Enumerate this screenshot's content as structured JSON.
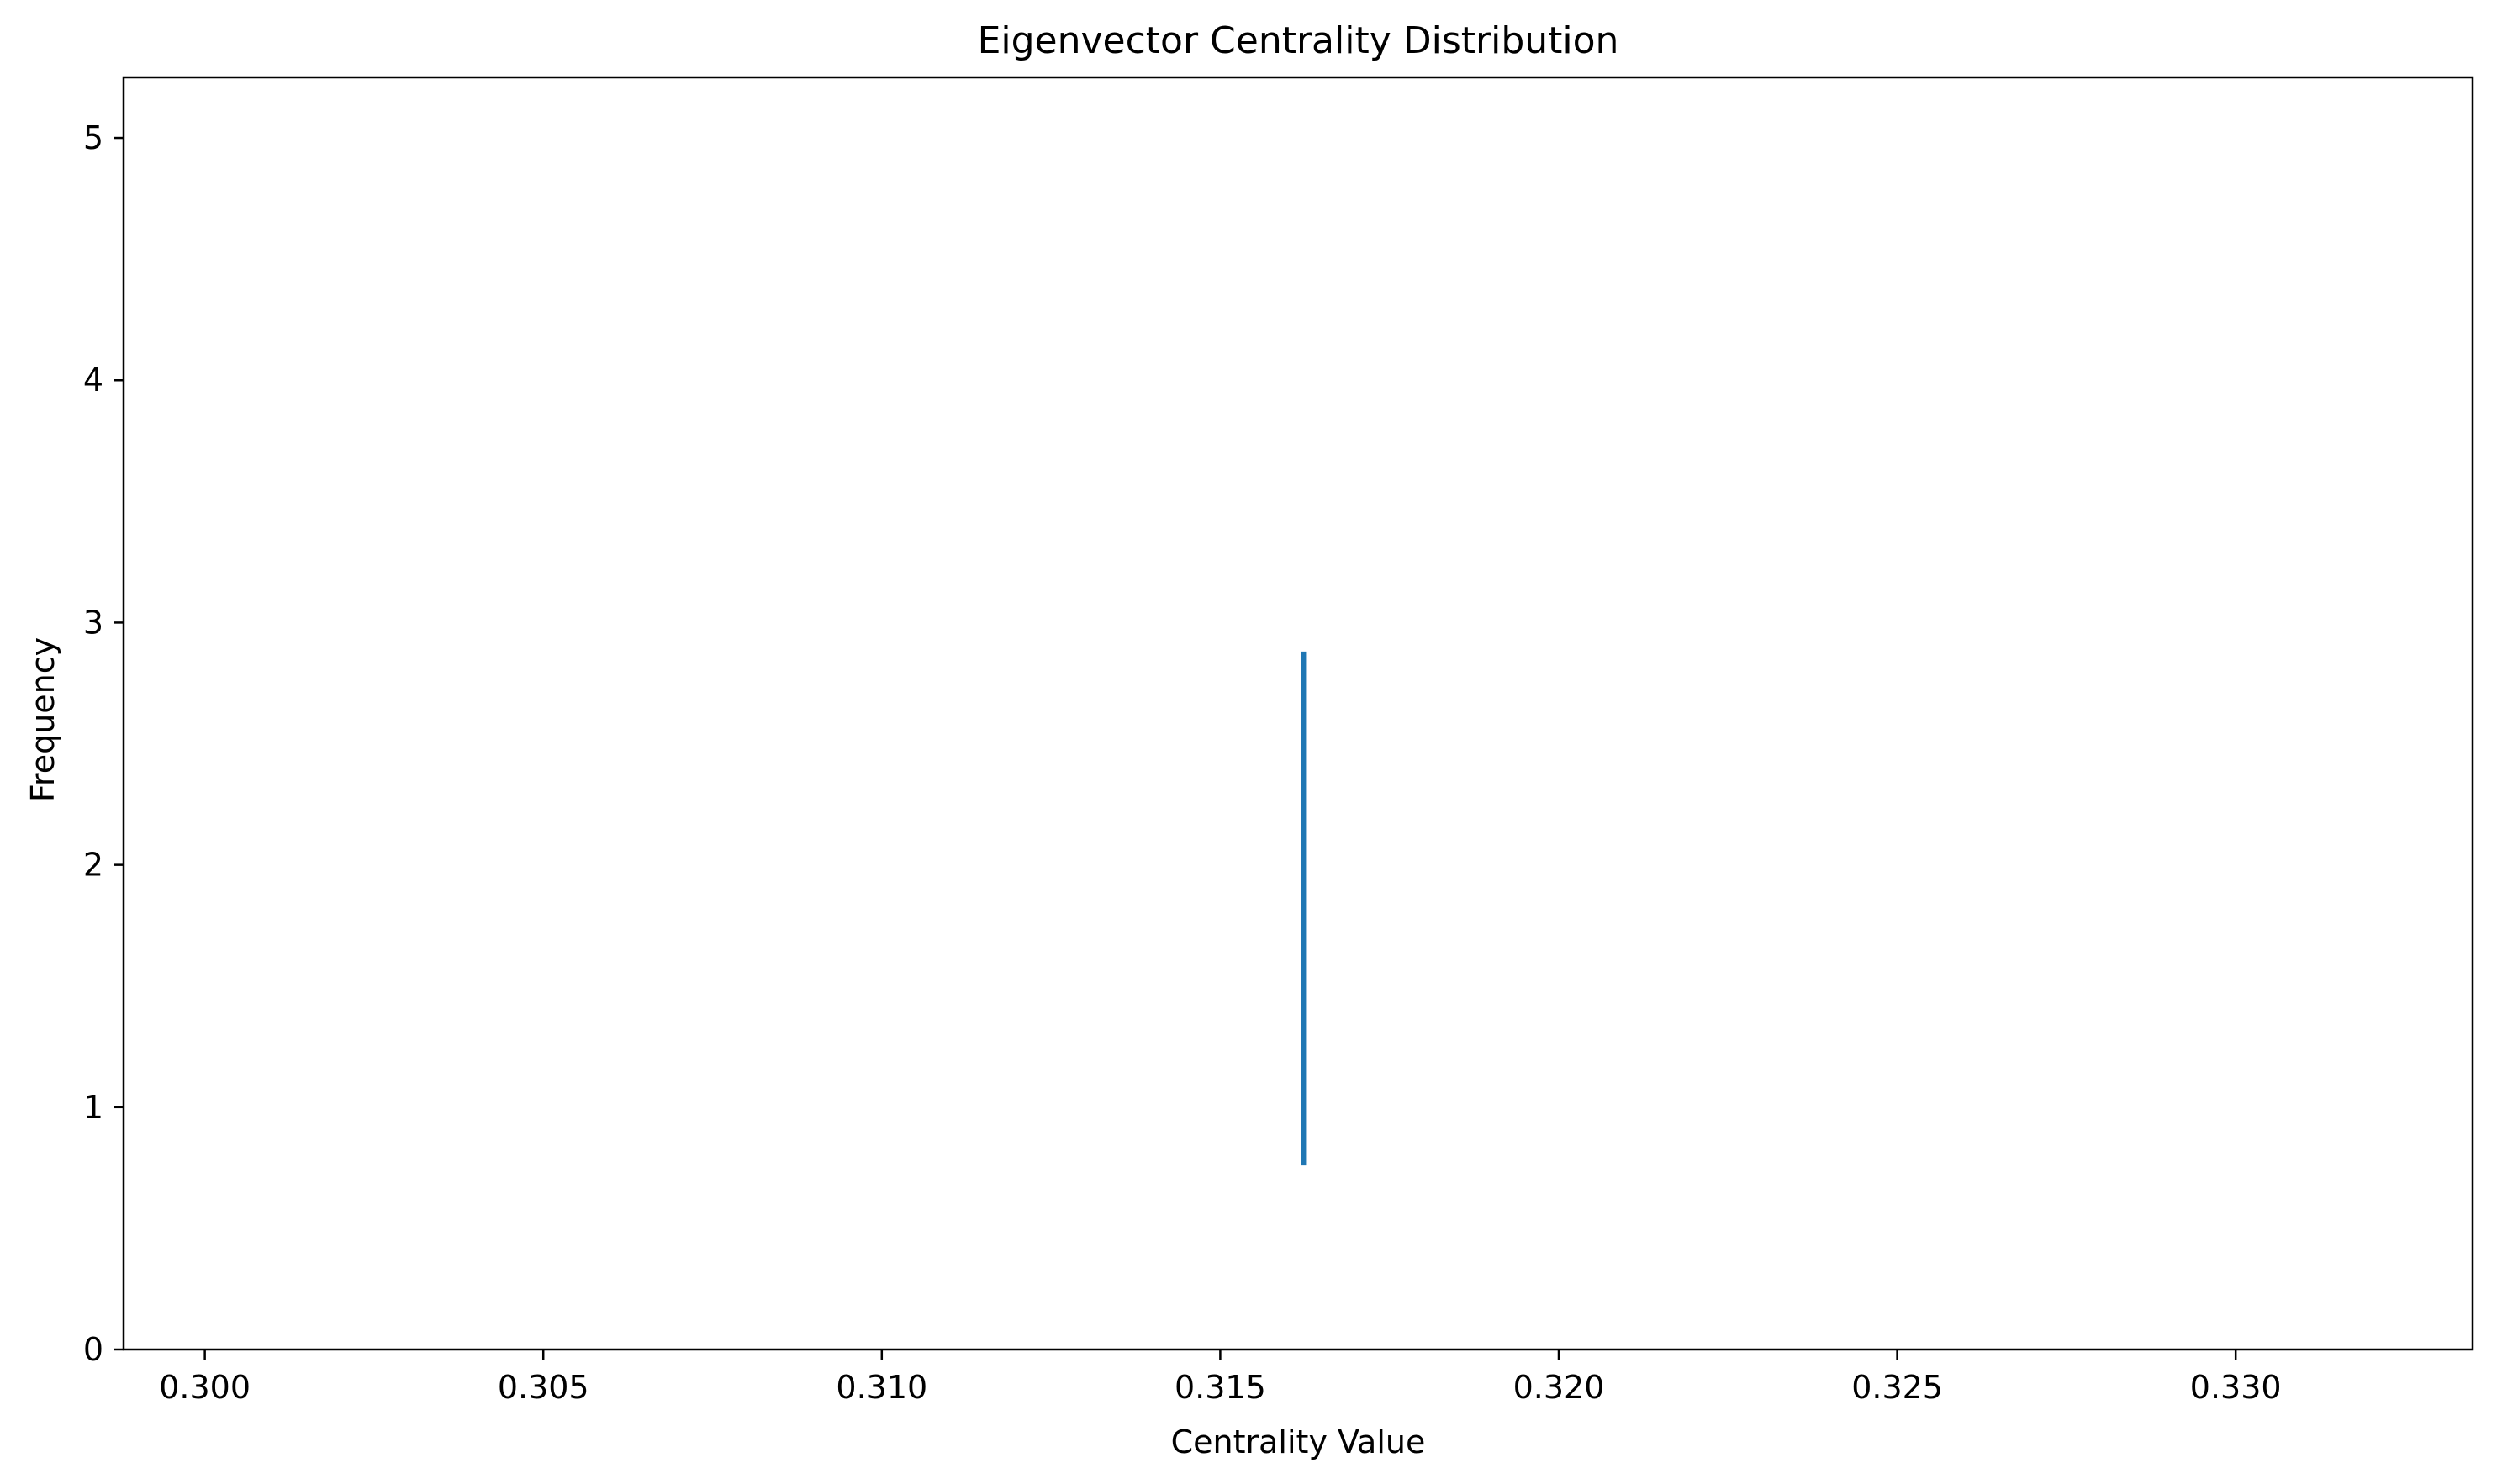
{
  "chart_data": {
    "type": "line",
    "title": "Eigenvector Centrality Distribution",
    "xlabel": "Centrality Value",
    "ylabel": "Frequency",
    "xlim": [
      0.2988,
      0.3335
    ],
    "ylim": [
      0,
      5.25
    ],
    "xticks": [
      0.3,
      0.305,
      0.31,
      0.315,
      0.32,
      0.325,
      0.33
    ],
    "xtick_labels": [
      "0.300",
      "0.305",
      "0.310",
      "0.315",
      "0.320",
      "0.325",
      "0.330"
    ],
    "yticks": [
      0,
      1,
      2,
      3,
      4,
      5
    ],
    "ytick_labels": [
      "0",
      "1",
      "2",
      "3",
      "4",
      "5"
    ],
    "grid": false,
    "series": [
      {
        "color": "#1f77b4",
        "x": [
          0.31623,
          0.31623
        ],
        "y": [
          0.77,
          2.87
        ]
      }
    ]
  }
}
